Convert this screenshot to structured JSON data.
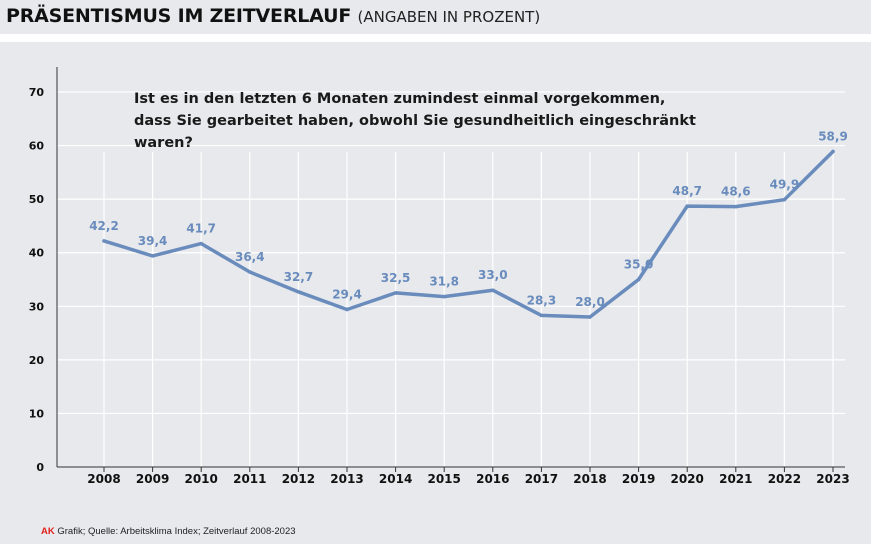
{
  "header": {
    "title": "PRÄSENTISMUS IM ZEITVERLAUF",
    "subtitle": "(ANGABEN IN PROZENT)"
  },
  "colors": {
    "panel": "#e7e9ec",
    "grid": "#ffffff",
    "line": "#6a8cbd",
    "label": "#6a8cbd",
    "axis": "#333333",
    "brand": "#e0201b"
  },
  "chart_data": {
    "type": "line",
    "title": "Ist es in den letzten 6 Monaten zumindest einmal vorgekommen, dass Sie gearbeitet haben, obwohl Sie gesundheitlich eingeschränkt waren?",
    "question_line1": "Ist es in den letzten 6 Monaten zumindest einmal vorgekommen,",
    "question_line2": "dass Sie gearbeitet haben, obwohl Sie gesundheitlich eingeschränkt waren?",
    "xlabel": "",
    "ylabel": "",
    "ylim": [
      0,
      70
    ],
    "yticks": [
      0,
      10,
      20,
      30,
      40,
      50,
      60,
      70
    ],
    "grid": true,
    "categories": [
      "2008",
      "2009",
      "2010",
      "2011",
      "2012",
      "2013",
      "2014",
      "2015",
      "2016",
      "2017",
      "2018",
      "2019",
      "2020",
      "2021",
      "2022",
      "2023"
    ],
    "values": [
      42.2,
      39.4,
      41.7,
      36.4,
      32.7,
      29.4,
      32.5,
      31.8,
      33.0,
      28.3,
      28.0,
      35.0,
      48.7,
      48.6,
      49.9,
      58.9
    ],
    "value_labels": [
      "42,2",
      "39,4",
      "41,7",
      "36,4",
      "32,7",
      "29,4",
      "32,5",
      "31,8",
      "33,0",
      "28,3",
      "28,0",
      "35,0",
      "48,7",
      "48,6",
      "49,9",
      "58,9"
    ]
  },
  "footer": {
    "brand": "AK",
    "source": "Grafik; Quelle: Arbeitsklima Index; Zeitverlauf 2008-2023"
  }
}
